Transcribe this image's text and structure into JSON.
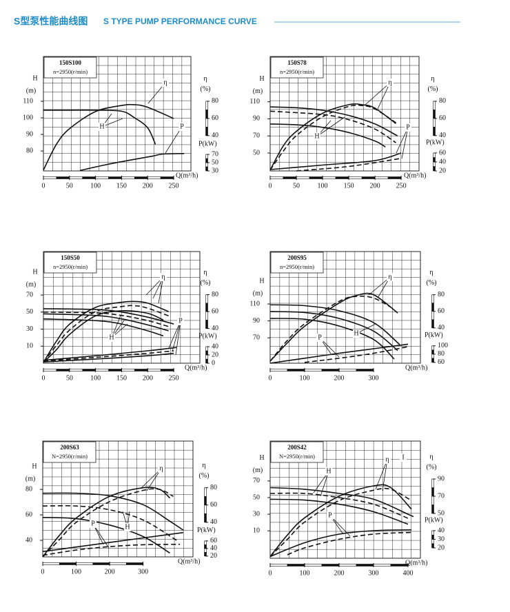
{
  "header": {
    "title_cn": "S型泵性能曲线图",
    "title_en": "S TYPE PUMP PERFORMANCE CURVE"
  },
  "chart_data": [
    {
      "type": "line",
      "title": "150S100",
      "subtitle": "n=2950(r/min)",
      "x_label": "Q(m³/h)",
      "y_label": "H",
      "y_unit": "(m)",
      "y2_label": "η",
      "y2_unit": "(%)",
      "y3_label": "P(kW)",
      "xlim": [
        0,
        283
      ],
      "xticks": [
        0,
        50,
        100,
        150,
        200,
        250
      ],
      "ylim": [
        68,
        137
      ],
      "yticks": [
        80,
        90,
        100,
        110
      ],
      "y2lim": [
        -1,
        132
      ],
      "y2ticks": [
        40,
        60,
        80
      ],
      "y3lim": [
        30,
        307
      ],
      "y3ticks": [
        30,
        50,
        70
      ],
      "color": "#111",
      "grid": true,
      "annotations": [
        "η",
        "H",
        "P"
      ],
      "series": [
        {
          "axis": "y",
          "dashed": false,
          "x": [
            0,
            50,
            100,
            150,
            175,
            200,
            215
          ],
          "values": [
            104.6,
            104.6,
            104.6,
            104,
            100,
            94,
            84
          ]
        },
        {
          "axis": "y2",
          "dashed": false,
          "x": [
            0,
            25,
            50,
            100,
            150,
            175,
            200,
            250
          ],
          "values": [
            0,
            30,
            48,
            68,
            75,
            76,
            73,
            60
          ]
        },
        {
          "axis": "y3",
          "dashed": false,
          "x": [
            70,
            120,
            170,
            210,
            230,
            270
          ],
          "values": [
            31,
            45,
            57,
            66,
            71,
            72
          ]
        }
      ]
    },
    {
      "type": "line",
      "title": "150S78",
      "subtitle": "n=2950(r/min)",
      "x_label": "Q(m³/h)",
      "y_label": "H",
      "y_unit": "(m)",
      "y2_label": "η",
      "y2_unit": "(%)",
      "y3_label": "P(kW)",
      "xlim": [
        0,
        284
      ],
      "xticks": [
        0,
        50,
        100,
        150,
        200,
        250
      ],
      "ylim": [
        29,
        163
      ],
      "yticks": [
        50,
        70,
        90,
        110
      ],
      "y2lim": [
        -1,
        132
      ],
      "y2ticks": [
        40,
        60,
        80
      ],
      "y3lim": [
        20,
        275
      ],
      "y3ticks": [
        20,
        40,
        60
      ],
      "color": "#111",
      "grid": true,
      "annotations": [
        "η",
        "H",
        "P"
      ],
      "series": [
        {
          "axis": "y",
          "dashed": false,
          "x": [
            0,
            50,
            100,
            150,
            200,
            243
          ],
          "values": [
            104,
            103,
            100,
            94,
            84,
            70
          ]
        },
        {
          "axis": "y",
          "dashed": true,
          "x": [
            0,
            100,
            150,
            200,
            240
          ],
          "values": [
            99,
            95,
            89,
            78,
            62
          ]
        },
        {
          "axis": "y",
          "dashed": false,
          "x": [
            0,
            50,
            100,
            150,
            200,
            220
          ],
          "values": [
            84,
            83,
            80,
            74,
            64,
            57
          ]
        },
        {
          "axis": "y2",
          "dashed": false,
          "x": [
            0,
            25,
            50,
            100,
            150,
            175,
            200,
            240
          ],
          "values": [
            0,
            28,
            45,
            66,
            76,
            76,
            72,
            54
          ]
        },
        {
          "axis": "y2",
          "dashed": true,
          "x": [
            0,
            25,
            50,
            100,
            150,
            175,
            200,
            240
          ],
          "values": [
            0,
            22,
            40,
            62,
            74,
            75,
            71,
            55
          ]
        },
        {
          "axis": "y3",
          "dashed": false,
          "x": [
            0,
            100,
            200,
            250
          ],
          "values": [
            23,
            33,
            43,
            60
          ]
        },
        {
          "axis": "y3",
          "dashed": true,
          "x": [
            50,
            150,
            250
          ],
          "values": [
            20,
            30,
            48
          ]
        }
      ]
    },
    {
      "type": "line",
      "title": "150S50",
      "subtitle": "n=2950(r/min)",
      "x_label": "Q(m³/h)",
      "y_label": "H",
      "y_unit": "(m)",
      "y2_label": "η",
      "y2_unit": "(%)",
      "y3_label": "P(kW)",
      "xlim": [
        0,
        300
      ],
      "xticks": [
        0,
        50,
        100,
        150,
        200,
        250
      ],
      "ylim": [
        -10,
        121
      ],
      "yticks": [
        10,
        30,
        50,
        70
      ],
      "y2lim": [
        -1,
        131
      ],
      "y2ticks": [
        40,
        60,
        80
      ],
      "y3lim": [
        0,
        270
      ],
      "y3ticks": [
        0,
        20,
        40
      ],
      "color": "#111",
      "grid": true,
      "annotations": [
        "η",
        "H",
        "P"
      ],
      "series": [
        {
          "axis": "y",
          "dashed": false,
          "x": [
            0,
            100,
            150,
            200,
            250
          ],
          "values": [
            54,
            53,
            50,
            44,
            36
          ]
        },
        {
          "axis": "y",
          "dashed": true,
          "x": [
            0,
            100,
            150,
            200,
            240
          ],
          "values": [
            50,
            49,
            46,
            40,
            33
          ]
        },
        {
          "axis": "y",
          "dashed": false,
          "x": [
            0,
            100,
            150,
            200,
            240
          ],
          "values": [
            48,
            46,
            42,
            35,
            28
          ]
        },
        {
          "axis": "y",
          "dashed": false,
          "x": [
            0,
            100,
            150,
            200,
            230
          ],
          "values": [
            42,
            40,
            36,
            28,
            22
          ]
        },
        {
          "axis": "y2",
          "dashed": false,
          "x": [
            0,
            25,
            50,
            100,
            150,
            175,
            200,
            240
          ],
          "values": [
            0,
            25,
            45,
            65,
            71,
            72,
            70,
            60
          ]
        },
        {
          "axis": "y2",
          "dashed": true,
          "x": [
            0,
            25,
            50,
            100,
            150,
            175,
            200,
            240
          ],
          "values": [
            0,
            20,
            38,
            60,
            66,
            67,
            64,
            55
          ]
        },
        {
          "axis": "y2",
          "dashed": false,
          "x": [
            0,
            25,
            50,
            100,
            150,
            200,
            230
          ],
          "values": [
            0,
            15,
            33,
            55,
            61,
            58,
            50
          ]
        },
        {
          "axis": "y3",
          "dashed": false,
          "x": [
            0,
            100,
            200,
            255
          ],
          "values": [
            7,
            18,
            30,
            38
          ]
        },
        {
          "axis": "y3",
          "dashed": true,
          "x": [
            0,
            100,
            200,
            250
          ],
          "values": [
            5,
            14,
            24,
            30
          ]
        },
        {
          "axis": "y3",
          "dashed": false,
          "x": [
            0,
            100,
            200,
            250
          ],
          "values": [
            3,
            10,
            18,
            24
          ]
        }
      ]
    },
    {
      "type": "line",
      "title": "200S95",
      "subtitle": "n=2950(r/min)",
      "x_label": "Q(m³/h)",
      "y_label": "H",
      "y_unit": "(m)",
      "y2_label": "η",
      "y2_unit": "(%)",
      "y3_label": "P(kW)",
      "xlim": [
        0,
        436
      ],
      "xticks": [
        0,
        100,
        200,
        300
      ],
      "ylim": [
        40,
        172
      ],
      "yticks": [
        70,
        90,
        110
      ],
      "y2lim": [
        -2.5,
        132
      ],
      "y2ticks": [
        40,
        60,
        80
      ],
      "y3lim": [
        58,
        328
      ],
      "y3ticks": [
        60,
        80,
        100
      ],
      "color": "#111",
      "grid": true,
      "annotations": [
        "η",
        "H",
        "P"
      ],
      "series": [
        {
          "axis": "y",
          "dashed": false,
          "x": [
            0,
            100,
            200,
            300,
            376
          ],
          "values": [
            109,
            108,
            102,
            88,
            62
          ]
        },
        {
          "axis": "y",
          "dashed": false,
          "x": [
            0,
            100,
            200,
            300,
            370
          ],
          "values": [
            101,
            100,
            93,
            78,
            55
          ]
        },
        {
          "axis": "y",
          "dashed": false,
          "x": [
            0,
            100,
            200,
            300,
            360
          ],
          "values": [
            93,
            92,
            84,
            68,
            45
          ]
        },
        {
          "axis": "y2",
          "dashed": false,
          "x": [
            0,
            50,
            100,
            200,
            250,
            300,
            370
          ],
          "values": [
            0,
            22,
            42,
            70,
            79,
            80,
            58
          ]
        },
        {
          "axis": "y2",
          "dashed": true,
          "x": [
            0,
            50,
            100,
            200,
            250,
            300,
            350
          ],
          "values": [
            0,
            25,
            45,
            72,
            78,
            76,
            65
          ]
        },
        {
          "axis": "y3",
          "dashed": false,
          "x": [
            0,
            100,
            200,
            300,
            400
          ],
          "values": [
            58,
            70,
            82,
            93,
            104
          ]
        },
        {
          "axis": "y3",
          "dashed": true,
          "x": [
            100,
            200,
            300,
            400
          ],
          "values": [
            60,
            70,
            82,
            98
          ]
        }
      ]
    },
    {
      "type": "line",
      "title": "200S63",
      "subtitle": "N=2950(r/min)",
      "x_label": "Q(m³/h)",
      "y_label": "H",
      "y_unit": "(m)",
      "y2_label": "η",
      "y2_unit": "(%)",
      "y3_label": "P(kW)",
      "xlim": [
        0,
        449
      ],
      "xticks": [
        0,
        100,
        200,
        300
      ],
      "ylim": [
        27,
        118
      ],
      "yticks": [
        40,
        60,
        80
      ],
      "y2lim": [
        0,
        134
      ],
      "y2ticks": [
        40,
        60,
        80
      ],
      "y3lim": [
        18,
        323
      ],
      "y3ticks": [
        20,
        40,
        60
      ],
      "color": "#111",
      "grid": true,
      "annotations": [
        "η",
        "H",
        "P"
      ],
      "series": [
        {
          "axis": "y",
          "dashed": false,
          "x": [
            0,
            100,
            200,
            300,
            380,
            420
          ],
          "values": [
            77,
            77,
            75,
            68,
            55,
            48
          ]
        },
        {
          "axis": "y",
          "dashed": true,
          "x": [
            0,
            100,
            200,
            300,
            400
          ],
          "values": [
            67,
            67,
            64,
            56,
            40
          ]
        },
        {
          "axis": "y",
          "dashed": false,
          "x": [
            0,
            100,
            200,
            300,
            380
          ],
          "values": [
            58,
            57,
            52,
            43,
            30
          ]
        },
        {
          "axis": "y2",
          "dashed": false,
          "x": [
            0,
            50,
            100,
            200,
            300,
            350,
            380
          ],
          "values": [
            0,
            25,
            45,
            70,
            80,
            78,
            68
          ]
        },
        {
          "axis": "y2",
          "dashed": true,
          "x": [
            0,
            50,
            100,
            200,
            300,
            350,
            390
          ],
          "values": [
            0,
            20,
            40,
            64,
            77,
            78,
            70
          ]
        },
        {
          "axis": "y3",
          "dashed": false,
          "x": [
            0,
            100,
            200,
            300,
            420
          ],
          "values": [
            32,
            44,
            56,
            68,
            82
          ]
        },
        {
          "axis": "y3",
          "dashed": true,
          "x": [
            0,
            100,
            200,
            300,
            410
          ],
          "values": [
            22,
            36,
            45,
            50,
            51
          ]
        }
      ]
    },
    {
      "type": "line",
      "title": "200S42",
      "subtitle": "N=2950(r/min)",
      "x_label": "Q(m³/h)",
      "y_label": "H",
      "y_unit": "(m)",
      "y2_label": "η",
      "y2_unit": "(%)",
      "y3_label": "P(kW)",
      "xlim": [
        0,
        436
      ],
      "xticks": [
        0,
        100,
        200,
        300,
        400
      ],
      "ylim": [
        -23,
        118
      ],
      "yticks": [
        10,
        30,
        50,
        70
      ],
      "y2lim": [
        -2,
        134
      ],
      "y2ticks": [
        50,
        70,
        90
      ],
      "y3lim": [
        8,
        144
      ],
      "y3ticks": [
        20,
        30,
        40
      ],
      "color": "#111",
      "grid": true,
      "annotations": [
        "H",
        "η",
        "P",
        "I"
      ],
      "series": [
        {
          "axis": "y",
          "dashed": false,
          "x": [
            0,
            100,
            200,
            300,
            400,
            416
          ],
          "values": [
            62,
            60,
            55,
            48,
            30,
            27
          ]
        },
        {
          "axis": "y",
          "dashed": true,
          "x": [
            0,
            100,
            200,
            300,
            400
          ],
          "values": [
            55,
            55,
            50,
            42,
            25
          ]
        },
        {
          "axis": "y",
          "dashed": false,
          "x": [
            0,
            100,
            200,
            300,
            400
          ],
          "values": [
            48,
            47,
            42,
            33,
            18
          ]
        },
        {
          "axis": "y2",
          "dashed": false,
          "x": [
            0,
            50,
            100,
            200,
            300,
            350,
            410
          ],
          "values": [
            0,
            25,
            45,
            70,
            82,
            80,
            55
          ]
        },
        {
          "axis": "y2",
          "dashed": true,
          "x": [
            0,
            50,
            100,
            200,
            300,
            350,
            410
          ],
          "values": [
            0,
            20,
            40,
            65,
            77,
            78,
            65
          ]
        },
        {
          "axis": "y3",
          "dashed": false,
          "x": [
            0,
            100,
            200,
            300,
            410
          ],
          "values": [
            10,
            26,
            36,
            40,
            41
          ]
        },
        {
          "axis": "y3",
          "dashed": true,
          "x": [
            50,
            100,
            200,
            300,
            410
          ],
          "values": [
            12,
            20,
            30,
            36,
            38
          ]
        }
      ]
    }
  ]
}
